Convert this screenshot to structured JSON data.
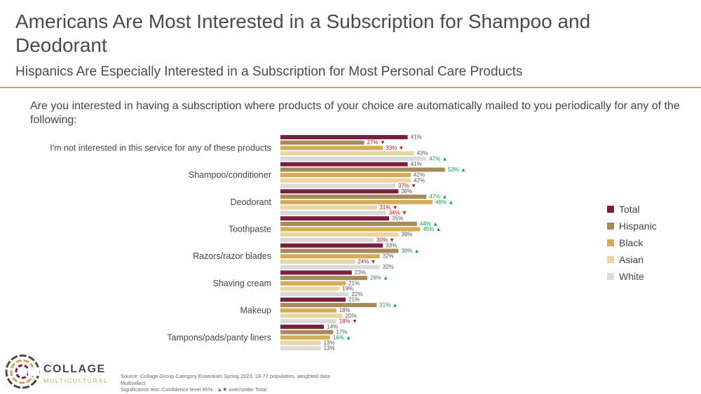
{
  "header": {
    "title": "Americans Are Most Interested in a Subscription for Shampoo and Deodorant",
    "subtitle": "Hispanics Are Especially Interested in a Subscription for Most Personal Care Products"
  },
  "question": "Are you interested in having a subscription where products of your choice are automatically mailed to you periodically for any of the following:",
  "colors": {
    "accent_rule": "#c9a75c",
    "sig_up": "#1a9a4a",
    "sig_down": "#c0141e"
  },
  "chart_data": {
    "type": "bar",
    "orientation": "horizontal",
    "categories": [
      "I'm not interested in this service for any of these products",
      "Shampoo/conditioner",
      "Deodorant",
      "Toothpaste",
      "Razors/razor blades",
      "Shaving cream",
      "Makeup",
      "Tampons/pads/panty liners"
    ],
    "value_unit": "%",
    "series": [
      {
        "name": "Total",
        "color": "#7a1f3d",
        "values": [
          41,
          41,
          38,
          35,
          33,
          23,
          21,
          14
        ],
        "sig": [
          "",
          "",
          "",
          "",
          "",
          "",
          "",
          ""
        ]
      },
      {
        "name": "Hispanic",
        "color": "#a88a5a",
        "values": [
          27,
          53,
          47,
          44,
          38,
          28,
          31,
          17
        ],
        "sig": [
          "down",
          "up",
          "up",
          "up",
          "up",
          "up",
          "up",
          ""
        ]
      },
      {
        "name": "Black",
        "color": "#d4ac55",
        "values": [
          33,
          42,
          49,
          45,
          32,
          21,
          18,
          16
        ],
        "sig": [
          "down",
          "",
          "up",
          "up",
          "",
          "",
          "",
          "up"
        ]
      },
      {
        "name": "Asian",
        "color": "#ead5a4",
        "values": [
          43,
          42,
          31,
          38,
          24,
          19,
          20,
          13
        ],
        "sig": [
          "",
          "",
          "down",
          "",
          "down",
          "",
          "",
          ""
        ]
      },
      {
        "name": "White",
        "color": "#dadada",
        "values": [
          47,
          37,
          34,
          30,
          32,
          22,
          18,
          13
        ],
        "sig": [
          "up",
          "down",
          "down",
          "down",
          "",
          "",
          "down",
          ""
        ]
      }
    ],
    "legend_position": "right",
    "grid": false
  },
  "brand": {
    "name": "COLLAGE",
    "sub": "MULTICULTURAL"
  },
  "footnotes": {
    "source": "Source: Collage Group Category Essentials Spring 2023, 18-77 population, weighted data",
    "multiselect": "Multiselect",
    "sig_prefix": "Significance test: Confidence level 95%.",
    "sig_up_symbol": "▲",
    "sig_down_symbol": "▼",
    "sig_suffix": "over/under Total"
  }
}
